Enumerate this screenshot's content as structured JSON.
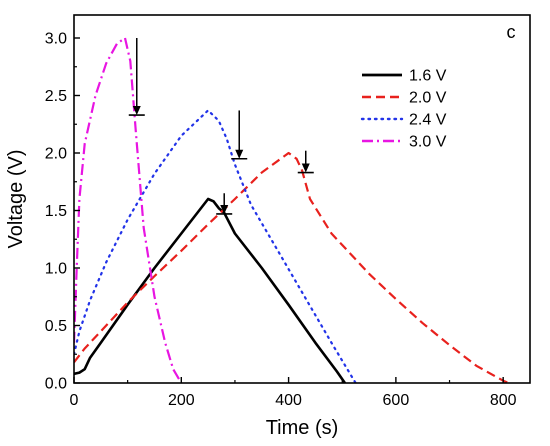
{
  "chart_data": {
    "type": "line",
    "panel_label": "c",
    "xlabel": "Time (s)",
    "ylabel": "Voltage (V)",
    "xlim": [
      0,
      850
    ],
    "ylim": [
      0,
      3.2
    ],
    "xticks": [
      0,
      200,
      400,
      600,
      800
    ],
    "yticks": [
      0.0,
      0.5,
      1.0,
      1.5,
      2.0,
      2.5,
      3.0
    ],
    "xtick_labels": [
      "0",
      "200",
      "400",
      "600",
      "800"
    ],
    "ytick_labels": [
      "0.0",
      "0.5",
      "1.0",
      "1.5",
      "2.0",
      "2.5",
      "3.0"
    ],
    "grid": false,
    "legend": "top-right",
    "series": [
      {
        "name": "1.6 V",
        "color": "#000000",
        "style": "solid",
        "x": [
          0,
          10,
          20,
          30,
          50,
          100,
          150,
          200,
          250,
          260,
          270,
          280,
          300,
          350,
          400,
          450,
          490,
          505
        ],
        "y": [
          0.08,
          0.09,
          0.12,
          0.22,
          0.35,
          0.68,
          1.0,
          1.3,
          1.6,
          1.58,
          1.52,
          1.48,
          1.3,
          1.0,
          0.68,
          0.35,
          0.1,
          0.0
        ],
        "arrow": {
          "x": 280,
          "y_from": 1.65,
          "y_to": 1.47
        }
      },
      {
        "name": "2.0 V",
        "color": "#e8211d",
        "style": "dashed",
        "x": [
          0,
          20,
          50,
          100,
          150,
          200,
          250,
          300,
          350,
          400,
          415,
          425,
          440,
          480,
          550,
          600,
          650,
          700,
          750,
          800,
          810
        ],
        "y": [
          0.18,
          0.3,
          0.45,
          0.7,
          0.93,
          1.15,
          1.38,
          1.6,
          1.83,
          2.0,
          1.95,
          1.85,
          1.6,
          1.3,
          0.95,
          0.73,
          0.52,
          0.33,
          0.15,
          0.02,
          0.0
        ],
        "arrow": {
          "x": 432,
          "y_from": 2.02,
          "y_to": 1.83
        }
      },
      {
        "name": "2.4 V",
        "color": "#2233e8",
        "style": "dotted",
        "x": [
          0,
          10,
          30,
          60,
          100,
          150,
          200,
          250,
          270,
          285,
          300,
          330,
          380,
          430,
          480,
          525
        ],
        "y": [
          0.25,
          0.45,
          0.72,
          1.05,
          1.42,
          1.82,
          2.15,
          2.37,
          2.28,
          2.12,
          1.9,
          1.55,
          1.15,
          0.75,
          0.35,
          0.0
        ],
        "arrow": {
          "x": 308,
          "y_from": 2.37,
          "y_to": 1.95
        }
      },
      {
        "name": "3.0 V",
        "color": "#e815e2",
        "style": "dashdot",
        "x": [
          0,
          5,
          10,
          20,
          40,
          60,
          80,
          95,
          105,
          115,
          130,
          150,
          170,
          185,
          200
        ],
        "y": [
          0.35,
          1.0,
          1.6,
          2.08,
          2.5,
          2.78,
          2.95,
          3.0,
          2.8,
          2.2,
          1.35,
          0.75,
          0.35,
          0.12,
          0.0
        ],
        "arrow": {
          "x": 117,
          "y_from": 3.0,
          "y_to": 2.33
        }
      }
    ]
  }
}
